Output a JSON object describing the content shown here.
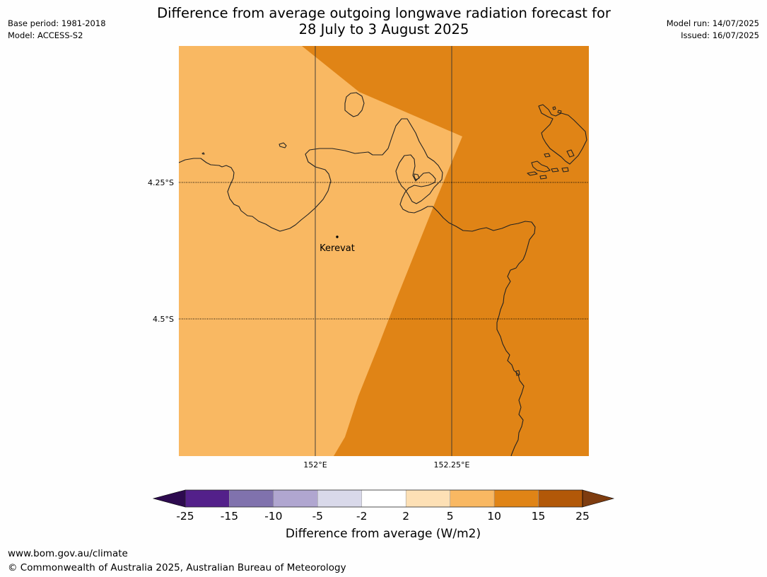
{
  "title": {
    "line1": "Difference from average outgoing longwave radiation forecast for",
    "line2": "28 July to 3 August 2025"
  },
  "meta_left": {
    "base_period": "Base period: 1981-2018",
    "model": "Model: ACCESS-S2"
  },
  "meta_right": {
    "model_run": "Model run: 14/07/2025",
    "issued": "Issued: 16/07/2025"
  },
  "map": {
    "lat_labels": [
      "4.25°S",
      "4.5°S"
    ],
    "lon_labels": [
      "152°E",
      "152.25°E"
    ],
    "place_label": "Kerevat",
    "colors": {
      "class_5_10": "#f9b862",
      "class_10_15": "#e08416",
      "coastline": "#222222",
      "gridline": "#333333"
    }
  },
  "colorbar": {
    "ticks": [
      "-25",
      "-15",
      "-10",
      "-5",
      "-2",
      "2",
      "5",
      "10",
      "15",
      "25"
    ],
    "colors": [
      "#53208a",
      "#8072ad",
      "#b0a6d0",
      "#d9d9ea",
      "#ffffff",
      "#fde0b5",
      "#f9b862",
      "#e08416",
      "#b25808"
    ],
    "under_color": "#2d0a4f",
    "over_color": "#7e3c0f",
    "label": "Difference from average (W/m2)"
  },
  "footer": {
    "url": "www.bom.gov.au/climate",
    "copyright": "© Commonwealth of Australia 2025, Australian Bureau of Meteorology"
  }
}
